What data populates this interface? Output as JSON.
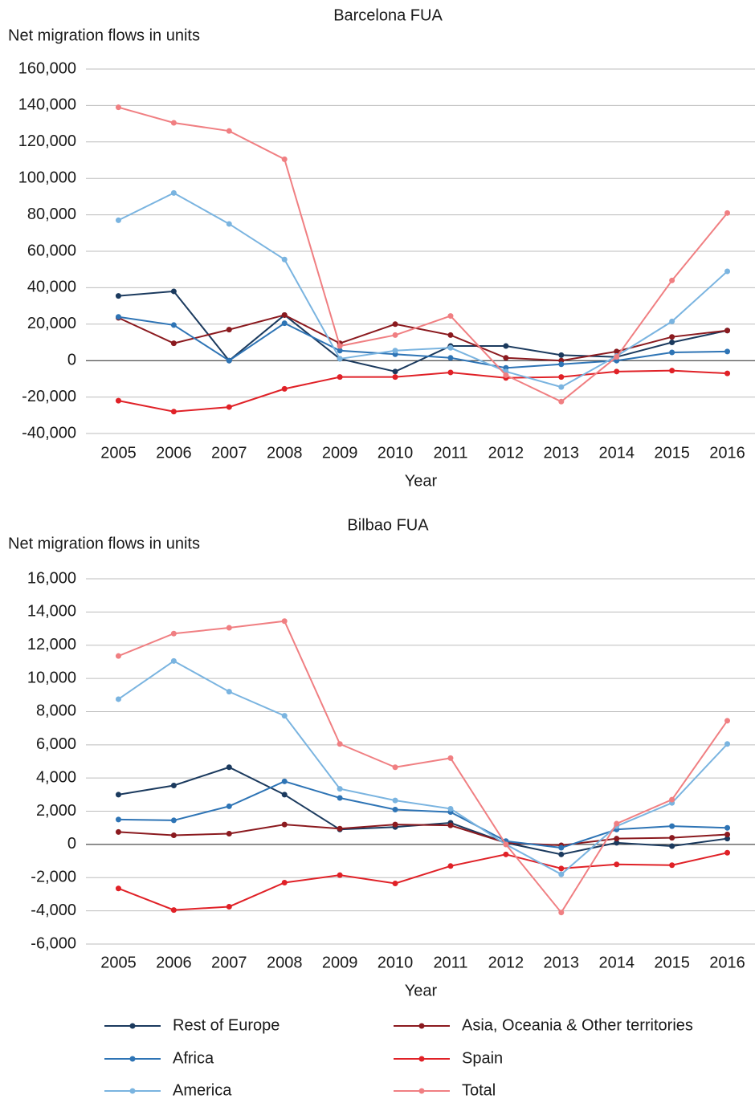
{
  "chart_data": [
    {
      "type": "line",
      "title": "Barcelona FUA",
      "y_label": "Net migration flows in units",
      "x_label": "Year",
      "categories": [
        "2005",
        "2006",
        "2007",
        "2008",
        "2009",
        "2010",
        "2011",
        "2012",
        "2013",
        "2014",
        "2015",
        "2016"
      ],
      "ylim": [
        -40000,
        160000
      ],
      "yticks": [
        {
          "value": -40000,
          "label": "-40,000"
        },
        {
          "value": -20000,
          "label": "-20,000"
        },
        0,
        {
          "value": 20000,
          "label": "20,000"
        },
        {
          "value": 40000,
          "label": "40,000"
        },
        {
          "value": 60000,
          "label": "60,000"
        },
        {
          "value": 80000,
          "label": "80,000"
        },
        {
          "value": 100000,
          "label": "100,000"
        },
        {
          "value": 120000,
          "label": "120,000"
        },
        {
          "value": 140000,
          "label": "140,000"
        },
        {
          "value": 160000,
          "label": "160,000"
        }
      ],
      "grid": true,
      "series": [
        {
          "name": "Rest of Europe",
          "color": "#1b3a5e",
          "values": [
            35500,
            38000,
            0,
            25000,
            1000,
            -6000,
            8000,
            8000,
            3000,
            2000,
            10000,
            16500
          ]
        },
        {
          "name": "Asia, Oceania & Other territories",
          "color": "#8b1a1f",
          "values": [
            23500,
            9500,
            17000,
            25000,
            9500,
            20000,
            14000,
            1500,
            0,
            5000,
            13000,
            16500
          ]
        },
        {
          "name": "Africa",
          "color": "#2e74b5",
          "values": [
            24000,
            19500,
            0,
            20500,
            5500,
            3500,
            1500,
            -4000,
            -2000,
            0,
            4500,
            5000
          ]
        },
        {
          "name": "Spain",
          "color": "#e02127",
          "values": [
            -22000,
            -28000,
            -25500,
            -15500,
            -9000,
            -9000,
            -6500,
            -9500,
            -9000,
            -6000,
            -5500,
            -7000
          ]
        },
        {
          "name": "America",
          "color": "#7ab4e0",
          "values": [
            77000,
            92000,
            75000,
            55500,
            1000,
            5500,
            7000,
            -6000,
            -14500,
            2500,
            21500,
            49000
          ]
        },
        {
          "name": "Total",
          "color": "#f07f82",
          "values": [
            139000,
            130500,
            126000,
            110500,
            8000,
            14000,
            24500,
            -8000,
            -22500,
            2000,
            44000,
            81000
          ]
        }
      ]
    },
    {
      "type": "line",
      "title": "Bilbao FUA",
      "y_label": "Net migration flows in units",
      "x_label": "Year",
      "categories": [
        "2005",
        "2006",
        "2007",
        "2008",
        "2009",
        "2010",
        "2011",
        "2012",
        "2013",
        "2014",
        "2015",
        "2016"
      ],
      "ylim": [
        -6000,
        16000
      ],
      "yticks": [
        {
          "value": -6000,
          "label": "-6,000"
        },
        {
          "value": -4000,
          "label": "-4,000"
        },
        {
          "value": -2000,
          "label": "-2,000"
        },
        0,
        {
          "value": 2000,
          "label": "2,000"
        },
        {
          "value": 4000,
          "label": "4,000"
        },
        {
          "value": 6000,
          "label": "6,000"
        },
        {
          "value": 8000,
          "label": "8,000"
        },
        {
          "value": 10000,
          "label": "10,000"
        },
        {
          "value": 12000,
          "label": "12,000"
        },
        {
          "value": 14000,
          "label": "14,000"
        },
        {
          "value": 16000,
          "label": "16,000"
        }
      ],
      "grid": true,
      "series": [
        {
          "color": "#1b3a5e",
          "values": [
            3000,
            3550,
            4650,
            3000,
            900,
            1050,
            1300,
            100,
            -600,
            100,
            -100,
            350
          ]
        },
        {
          "color": "#8b1a1f",
          "values": [
            750,
            550,
            650,
            1200,
            950,
            1200,
            1150,
            100,
            -50,
            350,
            400,
            600
          ]
        },
        {
          "color": "#2e74b5",
          "values": [
            1500,
            1450,
            2300,
            3800,
            2800,
            2100,
            1950,
            200,
            -200,
            900,
            1100,
            1000
          ]
        },
        {
          "color": "#e02127",
          "values": [
            -2650,
            -3950,
            -3750,
            -2300,
            -1850,
            -2350,
            -1300,
            -600,
            -1450,
            -1200,
            -1250,
            -500
          ]
        },
        {
          "color": "#7ab4e0",
          "values": [
            8750,
            11050,
            9200,
            7750,
            3350,
            2650,
            2150,
            0,
            -1800,
            1100,
            2500,
            6050
          ]
        },
        {
          "color": "#f07f82",
          "values": [
            11350,
            12700,
            13050,
            13450,
            6050,
            4650,
            5200,
            0,
            -4100,
            1250,
            2700,
            7450
          ]
        }
      ]
    }
  ]
}
